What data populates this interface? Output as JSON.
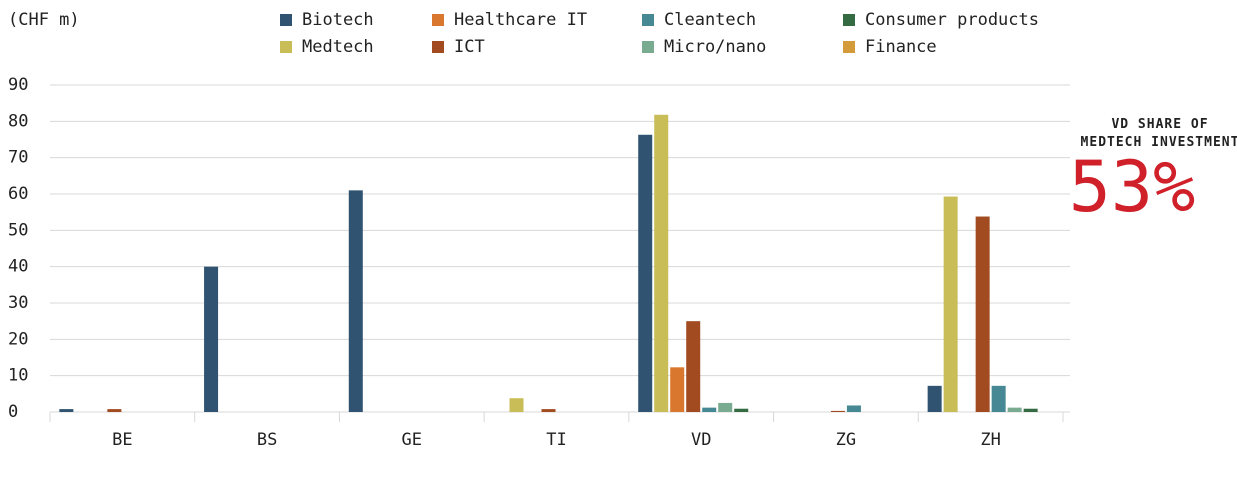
{
  "chart_data": {
    "type": "bar",
    "y_label": "(CHF m)",
    "annotation": {
      "title": "VD SHARE OF MEDTECH INVESTMENT",
      "value_text": "53%",
      "color": "#d0202a"
    },
    "categories": [
      "BE",
      "BS",
      "GE",
      "TI",
      "VD",
      "ZG",
      "ZH"
    ],
    "series": [
      {
        "name": "Biotech",
        "color": "#2f5370",
        "values": [
          0.8,
          40,
          61,
          0,
          76.3,
          0,
          7.2
        ]
      },
      {
        "name": "Medtech",
        "color": "#c9bd58",
        "values": [
          0,
          0,
          0,
          3.8,
          81.8,
          0,
          59.3
        ]
      },
      {
        "name": "Healthcare IT",
        "color": "#d9772e",
        "values": [
          0,
          0,
          0,
          0,
          12.3,
          0,
          0
        ]
      },
      {
        "name": "ICT",
        "color": "#a24b21",
        "values": [
          0.8,
          0,
          0,
          0.8,
          25,
          0.3,
          53.8
        ]
      },
      {
        "name": "Cleantech",
        "color": "#468893",
        "values": [
          0,
          0,
          0,
          0,
          1.2,
          1.8,
          7.2
        ]
      },
      {
        "name": "Micro/nano",
        "color": "#78ab90",
        "values": [
          0,
          0,
          0,
          0,
          2.5,
          0,
          1.2
        ]
      },
      {
        "name": "Consumer products",
        "color": "#356b42",
        "values": [
          0,
          0,
          0,
          0,
          0.9,
          0,
          0.9
        ]
      },
      {
        "name": "Finance",
        "color": "#d49b3a",
        "values": [
          0,
          0,
          0,
          0,
          0,
          0,
          0
        ]
      }
    ],
    "ylim": [
      0,
      90
    ],
    "yticks": [
      0,
      10,
      20,
      30,
      40,
      50,
      60,
      70,
      80,
      90
    ],
    "grid": true,
    "legend": "top"
  }
}
